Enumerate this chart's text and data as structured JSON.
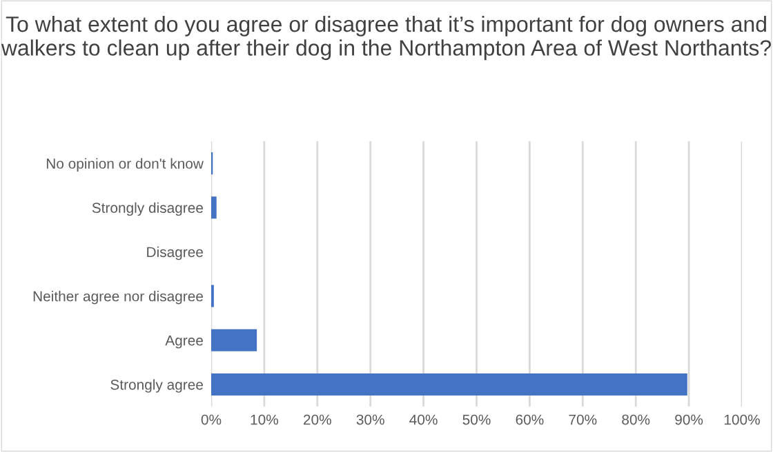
{
  "chart_data": {
    "type": "bar",
    "orientation": "horizontal",
    "title": "To what extent do you agree or disagree that it’s important for dog owners and walkers to clean up after their dog in the Northampton Area of West Northants?",
    "categories": [
      "No opinion or don't know",
      "Strongly disagree",
      "Disagree",
      "Neither agree nor disagree",
      "Agree",
      "Strongly agree"
    ],
    "values": [
      0.3,
      1.0,
      0,
      0.5,
      8.6,
      89.7
    ],
    "color": "#4472c4",
    "xlim": [
      0,
      100
    ],
    "xticks": [
      {
        "value": 0,
        "label": "0%"
      },
      {
        "value": 10,
        "label": "10%"
      },
      {
        "value": 20,
        "label": "20%"
      },
      {
        "value": 30,
        "label": "30%"
      },
      {
        "value": 40,
        "label": "40%"
      },
      {
        "value": 50,
        "label": "50%"
      },
      {
        "value": 60,
        "label": "60%"
      },
      {
        "value": 70,
        "label": "70%"
      },
      {
        "value": 80,
        "label": "80%"
      },
      {
        "value": 90,
        "label": "90%"
      },
      {
        "value": 100,
        "label": "100%"
      }
    ],
    "grid": "x",
    "legend": false
  }
}
